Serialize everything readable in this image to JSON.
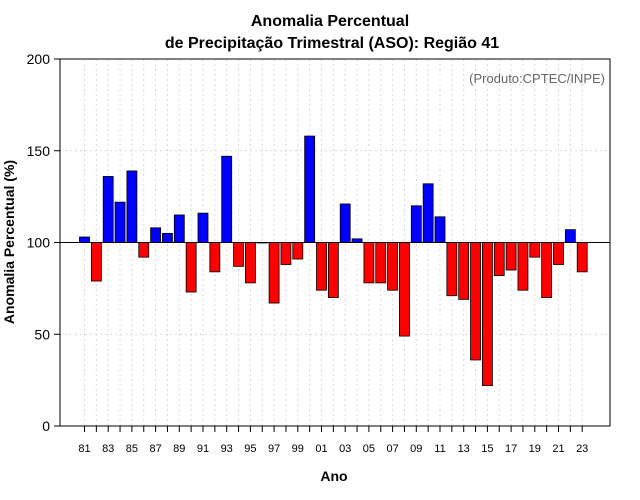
{
  "chart_data": {
    "type": "bar",
    "title_line1": "Anomalia Percentual",
    "title_line2": "de Precipitação Trimestral (ASO): Região 41",
    "xlabel": "Ano",
    "ylabel": "Anomalia Percentual (%)",
    "credit": "(Produto:CPTEC/INPE)",
    "baseline": 100,
    "ylim": [
      0,
      200
    ],
    "yticks": [
      0,
      50,
      100,
      150,
      200
    ],
    "xtick_labels": [
      "81",
      "83",
      "85",
      "87",
      "89",
      "91",
      "93",
      "95",
      "97",
      "99",
      "01",
      "03",
      "05",
      "07",
      "09",
      "11",
      "13",
      "15",
      "17",
      "19",
      "21",
      "23"
    ],
    "years": [
      "1981",
      "1982",
      "1983",
      "1984",
      "1985",
      "1986",
      "1987",
      "1988",
      "1989",
      "1990",
      "1991",
      "1992",
      "1993",
      "1994",
      "1995",
      "1996",
      "1997",
      "1998",
      "1999",
      "2000",
      "2001",
      "2002",
      "2003",
      "2004",
      "2005",
      "2006",
      "2007",
      "2008",
      "2009",
      "2010",
      "2011",
      "2012",
      "2013",
      "2014",
      "2015",
      "2016",
      "2017",
      "2018",
      "2019",
      "2020",
      "2021",
      "2022",
      "2023"
    ],
    "values": [
      103,
      79,
      136,
      122,
      139,
      92,
      108,
      105,
      115,
      73,
      116,
      84,
      147,
      87,
      78,
      100,
      67,
      88,
      91,
      158,
      74,
      70,
      121,
      102,
      78,
      78,
      74,
      49,
      120,
      132,
      114,
      71,
      69,
      36,
      22,
      82,
      85,
      74,
      92,
      70,
      88,
      107,
      84
    ],
    "colors": {
      "above": "#0000ff",
      "below": "#ff0000",
      "border": "#000000"
    },
    "grid": true
  }
}
